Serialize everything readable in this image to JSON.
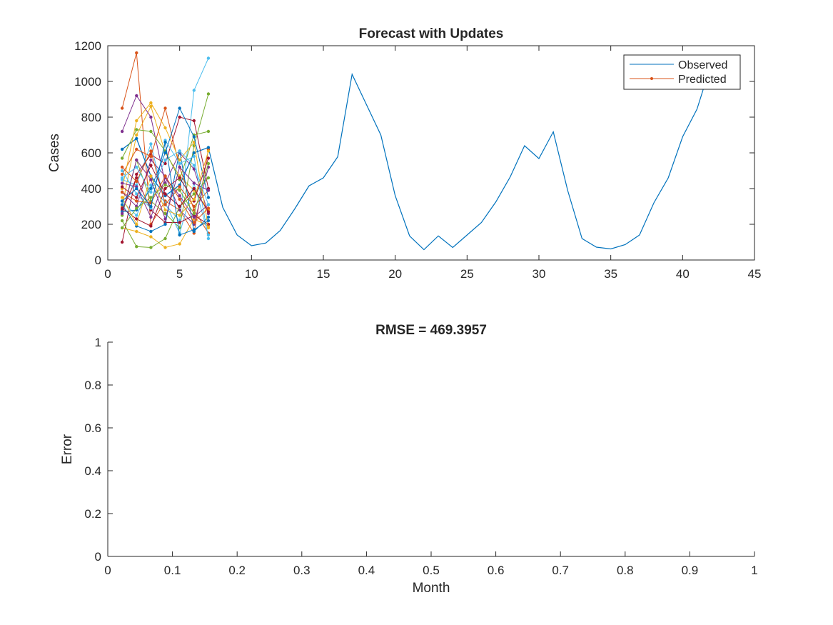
{
  "chart_data": [
    {
      "type": "line",
      "title": "Forecast with Updates",
      "xlabel": "",
      "ylabel": "Cases",
      "xlim": [
        0,
        45
      ],
      "ylim": [
        0,
        1200
      ],
      "xticks": [
        0,
        5,
        10,
        15,
        20,
        25,
        30,
        35,
        40,
        45
      ],
      "yticks": [
        0,
        200,
        400,
        600,
        800,
        1000,
        1200
      ],
      "grid": false,
      "legend": {
        "location": "top-right",
        "entries": [
          {
            "label": "Observed",
            "color": "#0072bd",
            "marker": "none"
          },
          {
            "label": "Predicted",
            "color": "#d95319",
            "marker": "point"
          }
        ]
      },
      "series": [
        {
          "name": "Observed",
          "color": "#0072bd",
          "x": [
            1,
            2,
            3,
            4,
            5,
            6,
            7,
            8,
            9,
            10,
            11,
            12,
            13,
            14,
            15,
            16,
            17,
            18,
            19,
            20,
            21,
            22,
            23,
            24,
            25,
            26,
            27,
            28,
            29,
            30,
            31,
            32,
            33,
            34,
            35,
            36,
            37,
            38,
            39,
            40,
            41,
            42
          ],
          "values": [
            620,
            680,
            470,
            360,
            420,
            600,
            630,
            295,
            140,
            80,
            95,
            165,
            285,
            415,
            460,
            578,
            1040,
            870,
            700,
            360,
            135,
            58,
            135,
            70,
            140,
            210,
            325,
            465,
            640,
            568,
            718,
            390,
            120,
            72,
            62,
            86,
            140,
            320,
            460,
            690,
            845,
            1100
          ]
        },
        {
          "name": "Predicted",
          "color": "#d95319",
          "marker": "point",
          "x": [
            1,
            2,
            3,
            4,
            5,
            6,
            7
          ],
          "runs": [
            {
              "color": "#d95319",
              "values": [
                850,
                1160,
                200,
                330,
                280,
                150,
                620
              ]
            },
            {
              "color": "#edb120",
              "values": [
                300,
                700,
                860,
                600,
                470,
                390,
                280
              ]
            },
            {
              "color": "#7e2f8e",
              "values": [
                720,
                920,
                800,
                430,
                600,
                510,
                260
              ]
            },
            {
              "color": "#77ac30",
              "values": [
                250,
                560,
                330,
                260,
                180,
                640,
                930
              ]
            },
            {
              "color": "#4dbeee",
              "values": [
                450,
                420,
                650,
                310,
                220,
                950,
                1130
              ]
            },
            {
              "color": "#a2142f",
              "values": [
                100,
                480,
                590,
                540,
                800,
                780,
                400
              ]
            },
            {
              "color": "#0072bd",
              "values": [
                620,
                680,
                470,
                360,
                420,
                600,
                630
              ]
            },
            {
              "color": "#d95319",
              "values": [
                480,
                620,
                580,
                850,
                520,
                280,
                150
              ]
            },
            {
              "color": "#edb120",
              "values": [
                180,
                160,
                130,
                70,
                90,
                230,
                190
              ]
            },
            {
              "color": "#7e2f8e",
              "values": [
                380,
                300,
                560,
                470,
                280,
                200,
                520
              ]
            },
            {
              "color": "#77ac30",
              "values": [
                570,
                730,
                720,
                610,
                450,
                700,
                720
              ]
            },
            {
              "color": "#4dbeee",
              "values": [
                330,
                250,
                420,
                320,
                150,
                430,
                140
              ]
            },
            {
              "color": "#a2142f",
              "values": [
                280,
                460,
                280,
                210,
                210,
                250,
                200
              ]
            },
            {
              "color": "#0072bd",
              "values": [
                310,
                190,
                160,
                200,
                610,
                160,
                240
              ]
            },
            {
              "color": "#d95319",
              "values": [
                520,
                440,
                610,
                310,
                410,
                300,
                390
              ]
            },
            {
              "color": "#edb120",
              "values": [
                400,
                780,
                880,
                740,
                560,
                660,
                180
              ]
            },
            {
              "color": "#7e2f8e",
              "values": [
                430,
                410,
                240,
                460,
                360,
                240,
                310
              ]
            },
            {
              "color": "#77ac30",
              "values": [
                220,
                75,
                70,
                120,
                300,
                370,
                460
              ]
            },
            {
              "color": "#4dbeee",
              "values": [
                500,
                370,
                290,
                670,
                540,
                580,
                120
              ]
            },
            {
              "color": "#a2142f",
              "values": [
                290,
                230,
                190,
                400,
                460,
                330,
                570
              ]
            },
            {
              "color": "#0072bd",
              "values": [
                270,
                280,
                400,
                600,
                850,
                690,
                350
              ]
            },
            {
              "color": "#d95319",
              "values": [
                380,
                330,
                320,
                470,
                340,
                210,
                290
              ]
            },
            {
              "color": "#edb120",
              "values": [
                350,
                200,
                470,
                280,
                250,
                340,
                610
              ]
            },
            {
              "color": "#7e2f8e",
              "values": [
                260,
                560,
                450,
                230,
                520,
                430,
                390
              ]
            },
            {
              "color": "#77ac30",
              "values": [
                180,
                290,
                350,
                420,
                390,
                260,
                540
              ]
            },
            {
              "color": "#4dbeee",
              "values": [
                460,
                520,
                380,
                560,
                610,
                530,
                310
              ]
            },
            {
              "color": "#a2142f",
              "values": [
                410,
                350,
                530,
                370,
                300,
                400,
                270
              ]
            },
            {
              "color": "#0072bd",
              "values": [
                330,
                400,
                300,
                660,
                140,
                170,
                220
              ]
            }
          ]
        }
      ]
    },
    {
      "type": "line",
      "title": "RMSE = 469.3957",
      "xlabel": "Month",
      "ylabel": "Error",
      "xlim": [
        0,
        1
      ],
      "ylim": [
        0,
        1
      ],
      "xticks": [
        "0",
        "0.1",
        "0.2",
        "0.3",
        "0.4",
        "0.5",
        "0.6",
        "0.7",
        "0.8",
        "0.9",
        "1"
      ],
      "yticks": [
        "0",
        "0.2",
        "0.4",
        "0.6",
        "0.8",
        "1"
      ],
      "grid": false,
      "series": []
    }
  ]
}
